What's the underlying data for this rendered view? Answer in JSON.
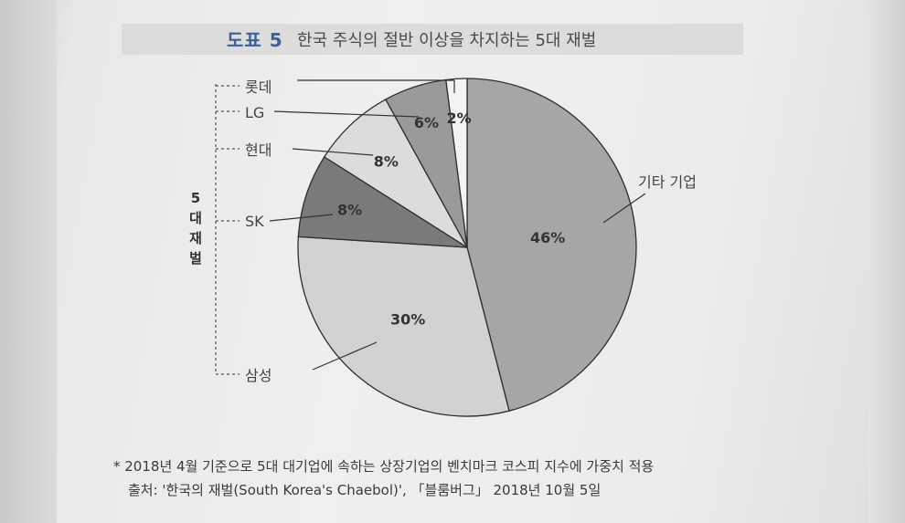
{
  "figure": {
    "number": "도표 5",
    "title": "한국 주식의 절반 이상을 차지하는 5대 재벌"
  },
  "chart_data": {
    "type": "pie",
    "title": "한국 주식의 절반 이상을 차지하는 5대 재벌",
    "group_label": "5대재벌",
    "slices": [
      {
        "label": "기타 기업",
        "value": 46,
        "value_label": "46%",
        "color": "#a6a6a6"
      },
      {
        "label": "삼성",
        "value": 30,
        "value_label": "30%",
        "color": "#d2d2d2"
      },
      {
        "label": "SK",
        "value": 8,
        "value_label": "8%",
        "color": "#7a7a7a"
      },
      {
        "label": "현대",
        "value": 8,
        "value_label": "8%",
        "color": "#dcdcdc"
      },
      {
        "label": "LG",
        "value": 6,
        "value_label": "6%",
        "color": "#9a9a9a"
      },
      {
        "label": "롯데",
        "value": 2,
        "value_label": "2%",
        "color": "#f3f3f3"
      }
    ]
  },
  "footnotes": {
    "note": "* 2018년 4월 기준으로 5대 대기업에 속하는 상장기업의 벤치마크 코스피 지수에 가중치 적용",
    "source": "출처: '한국의 재벌(South Korea's Chaebol)', 「블룸버그」 2018년 10월 5일"
  }
}
